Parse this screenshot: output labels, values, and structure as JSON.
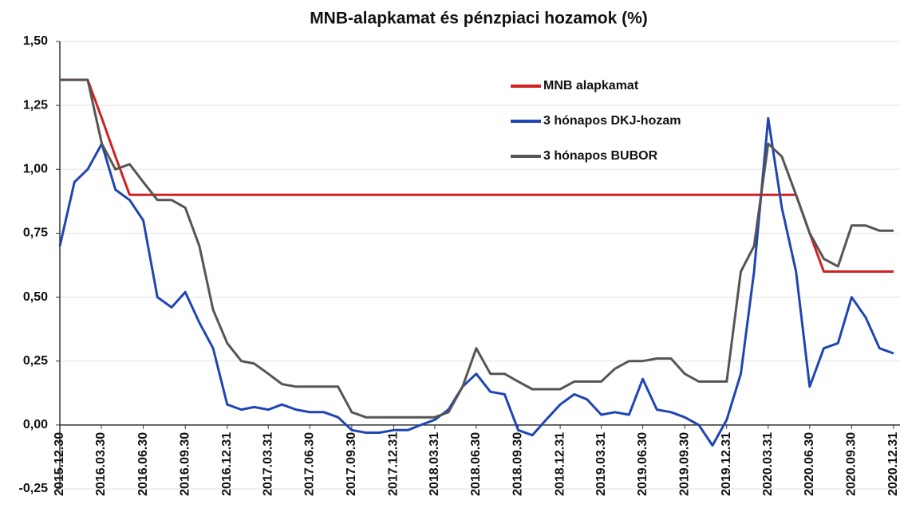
{
  "chart_data": {
    "type": "line",
    "title": "MNB-alapkamat és pénzpiaci hozamok (%)",
    "x": [
      "2015.12.30",
      "2016.01.31",
      "2016.02.29",
      "2016.03.31",
      "2016.04.30",
      "2016.05.31",
      "2016.06.30",
      "2016.07.31",
      "2016.08.31",
      "2016.09.30",
      "2016.10.31",
      "2016.11.30",
      "2016.12.31",
      "2017.01.31",
      "2017.02.28",
      "2017.03.31",
      "2017.04.30",
      "2017.05.31",
      "2017.06.30",
      "2017.07.31",
      "2017.08.31",
      "2017.09.30",
      "2017.10.31",
      "2017.11.30",
      "2017.12.31",
      "2018.01.31",
      "2018.02.28",
      "2018.03.31",
      "2018.04.30",
      "2018.05.31",
      "2018.06.30",
      "2018.07.31",
      "2018.08.31",
      "2018.09.30",
      "2018.10.31",
      "2018.11.30",
      "2018.12.31",
      "2019.01.31",
      "2019.02.28",
      "2019.03.31",
      "2019.04.30",
      "2019.05.31",
      "2019.06.30",
      "2019.07.31",
      "2019.08.31",
      "2019.09.30",
      "2019.10.31",
      "2019.11.30",
      "2019.12.31",
      "2020.01.31",
      "2020.02.29",
      "2020.03.31",
      "2020.04.30",
      "2020.05.31",
      "2020.06.30",
      "2020.07.31",
      "2020.08.31",
      "2020.09.30",
      "2020.10.31",
      "2020.11.30",
      "2020.12.31"
    ],
    "series": [
      {
        "name": "MNB alapkamat",
        "color": "#d42020",
        "values": [
          1.35,
          1.35,
          1.35,
          1.2,
          1.05,
          0.9,
          0.9,
          0.9,
          0.9,
          0.9,
          0.9,
          0.9,
          0.9,
          0.9,
          0.9,
          0.9,
          0.9,
          0.9,
          0.9,
          0.9,
          0.9,
          0.9,
          0.9,
          0.9,
          0.9,
          0.9,
          0.9,
          0.9,
          0.9,
          0.9,
          0.9,
          0.9,
          0.9,
          0.9,
          0.9,
          0.9,
          0.9,
          0.9,
          0.9,
          0.9,
          0.9,
          0.9,
          0.9,
          0.9,
          0.9,
          0.9,
          0.9,
          0.9,
          0.9,
          0.9,
          0.9,
          0.9,
          0.9,
          0.9,
          0.75,
          0.6,
          0.6,
          0.6,
          0.6,
          0.6,
          0.6
        ]
      },
      {
        "name": "3 hónapos DKJ-hozam",
        "color": "#1f45b4",
        "values": [
          0.7,
          0.95,
          1.0,
          1.1,
          0.92,
          0.88,
          0.8,
          0.5,
          0.46,
          0.52,
          0.4,
          0.3,
          0.08,
          0.06,
          0.07,
          0.06,
          0.08,
          0.06,
          0.05,
          0.05,
          0.03,
          -0.02,
          -0.03,
          -0.03,
          -0.02,
          -0.02,
          0.0,
          0.02,
          0.06,
          0.15,
          0.2,
          0.13,
          0.12,
          -0.02,
          -0.04,
          0.02,
          0.08,
          0.12,
          0.1,
          0.04,
          0.05,
          0.04,
          0.18,
          0.06,
          0.05,
          0.03,
          0.0,
          -0.08,
          0.02,
          0.2,
          0.6,
          1.2,
          0.85,
          0.6,
          0.15,
          0.3,
          0.32,
          0.5,
          0.42,
          0.3,
          0.28
        ]
      },
      {
        "name": "3 hónapos BUBOR",
        "color": "#555555",
        "values": [
          1.35,
          1.35,
          1.35,
          1.1,
          1.0,
          1.02,
          0.95,
          0.88,
          0.88,
          0.85,
          0.7,
          0.45,
          0.32,
          0.25,
          0.24,
          0.2,
          0.16,
          0.15,
          0.15,
          0.15,
          0.15,
          0.05,
          0.03,
          0.03,
          0.03,
          0.03,
          0.03,
          0.03,
          0.05,
          0.15,
          0.3,
          0.2,
          0.2,
          0.17,
          0.14,
          0.14,
          0.14,
          0.17,
          0.17,
          0.17,
          0.22,
          0.25,
          0.25,
          0.26,
          0.26,
          0.2,
          0.17,
          0.17,
          0.17,
          0.6,
          0.7,
          1.1,
          1.05,
          0.9,
          0.75,
          0.65,
          0.62,
          0.78,
          0.78,
          0.76,
          0.76
        ]
      }
    ],
    "xlim": [
      "2015.12.30",
      "2020.12.31"
    ],
    "xticks": [
      "2015.12.30",
      "2016.03.30",
      "2016.06.30",
      "2016.09.30",
      "2016.12.31",
      "2017.03.31",
      "2017.06.30",
      "2017.09.30",
      "2017.12.31",
      "2018.03.31",
      "2018.06.30",
      "2018.09.30",
      "2018.12.31",
      "2019.03.31",
      "2019.06.30",
      "2019.09.30",
      "2019.12.31",
      "2020.03.31",
      "2020.06.30",
      "2020.09.30",
      "2020.12.31"
    ],
    "ylim": [
      -0.25,
      1.5
    ],
    "yticks": [
      {
        "value": -0.25,
        "label": "-0,25"
      },
      {
        "value": 0,
        "label": "0,00"
      },
      {
        "value": 0.25,
        "label": "0,25"
      },
      {
        "value": 0.5,
        "label": "0,50"
      },
      {
        "value": 0.75,
        "label": "0,75"
      },
      {
        "value": 1.0,
        "label": "1,00"
      },
      {
        "value": 1.25,
        "label": "1,25"
      },
      {
        "value": 1.5,
        "label": "1,50"
      }
    ],
    "grid": true
  }
}
